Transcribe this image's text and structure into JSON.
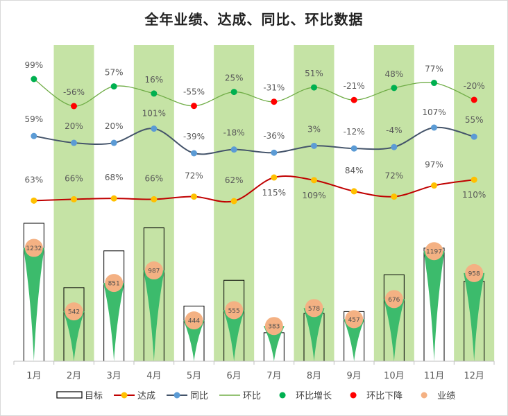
{
  "chart_data": {
    "type": "combo",
    "title": "全年业绩、达成、同比、环比数据",
    "categories": [
      "1月",
      "2月",
      "3月",
      "4月",
      "5月",
      "6月",
      "7月",
      "8月",
      "9月",
      "10月",
      "11月",
      "12月"
    ],
    "target_max_ratio": 1.3,
    "series": [
      {
        "name": "目标",
        "kind": "bar-outline",
        "values": [
          1500,
          800,
          1200,
          1450,
          600,
          880,
          310,
          520,
          540,
          940,
          1230,
          870
        ]
      },
      {
        "name": "业绩",
        "kind": "spike",
        "values": [
          1232,
          542,
          851,
          987,
          444,
          555,
          383,
          578,
          457,
          676,
          1197,
          958
        ],
        "labels": [
          "1232",
          "542",
          "851",
          "987",
          "444",
          "555",
          "383",
          "578",
          "457",
          "676",
          "1197",
          "958"
        ]
      },
      {
        "name": "达成",
        "kind": "line",
        "color": "#c00000",
        "marker_color": "#ffc000",
        "values": [
          63,
          66,
          68,
          66,
          72,
          62,
          115,
          109,
          84,
          72,
          97,
          110
        ],
        "labels": [
          "63%",
          "66%",
          "68%",
          "66%",
          "72%",
          "62%",
          "115%",
          "109%",
          "84%",
          "72%",
          "97%",
          "110%"
        ]
      },
      {
        "name": "同比",
        "kind": "line",
        "color": "#44546a",
        "marker_color": "#5b9bd5",
        "values": [
          59,
          20,
          20,
          101,
          -39,
          -18,
          -36,
          3,
          -12,
          -4,
          107,
          55
        ],
        "labels": [
          "59%",
          "20%",
          "20%",
          "101%",
          "-39%",
          "-18%",
          "-36%",
          "3%",
          "-12%",
          "-4%",
          "107%",
          "55%"
        ]
      },
      {
        "name": "环比",
        "kind": "line",
        "color": "#70ad47",
        "values": [
          99,
          -56,
          57,
          16,
          -55,
          25,
          -31,
          51,
          -21,
          48,
          77,
          -20
        ],
        "labels": [
          "99%",
          "-56%",
          "57%",
          "16%",
          "-55%",
          "25%",
          "-31%",
          "51%",
          "-21%",
          "48%",
          "77%",
          "-20%"
        ]
      }
    ],
    "markers": {
      "环比增长": "#00b050",
      "环比下降": "#ff0000"
    },
    "band_color": "#c5e3a5",
    "legend": {
      "position": "bottom",
      "items": [
        "目标",
        "达成",
        "同比",
        "环比",
        "环比增长",
        "环比下降",
        "业绩"
      ]
    },
    "colors": {
      "spike": "#3cbb6c",
      "bubble": "#f4b183",
      "target_outline": "#000000"
    }
  }
}
